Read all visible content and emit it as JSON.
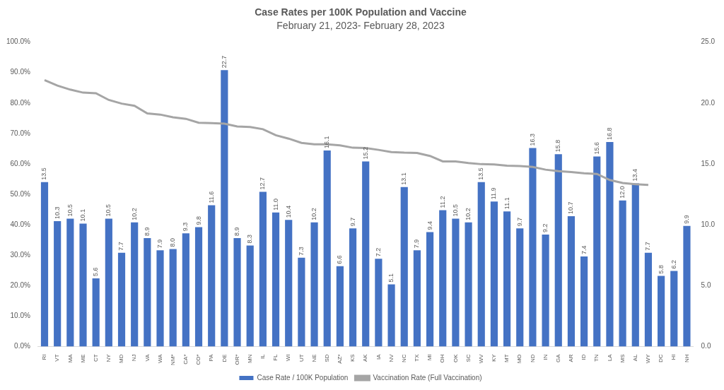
{
  "chart_data": {
    "type": "bar",
    "title": "Case Rates per 100K Population and Vaccine",
    "subtitle": "February 21, 2023- February 28, 2023",
    "categories": [
      "RI",
      "VT",
      "MA",
      "ME",
      "CT",
      "NY",
      "MD",
      "NJ",
      "VA",
      "WA",
      "NM*",
      "CA*",
      "CO*",
      "PA",
      "DE",
      "OR*",
      "MN",
      "IL",
      "FL",
      "WI",
      "UT",
      "NE",
      "SD",
      "AZ*",
      "KS",
      "AK",
      "IA",
      "NV",
      "NC",
      "TX",
      "MI",
      "OH",
      "OK",
      "SC",
      "WV",
      "KY",
      "MT",
      "MO",
      "ND",
      "IN",
      "GA",
      "AR",
      "ID",
      "TN",
      "LA",
      "MS",
      "AL",
      "WY",
      "DC",
      "HI",
      "NH"
    ],
    "series": [
      {
        "name": "Case Rate / 100K Population",
        "type": "bar",
        "color": "#4472c4",
        "axis": "y2",
        "values": [
          13.5,
          10.3,
          10.5,
          10.1,
          5.6,
          10.5,
          7.7,
          10.2,
          8.9,
          7.9,
          8.0,
          9.3,
          9.8,
          11.6,
          22.7,
          8.9,
          8.3,
          12.7,
          11.0,
          10.4,
          7.3,
          10.2,
          16.1,
          6.6,
          9.7,
          15.2,
          7.2,
          5.1,
          13.1,
          7.9,
          9.4,
          11.2,
          10.5,
          10.2,
          13.5,
          11.9,
          11.1,
          9.7,
          16.3,
          9.2,
          15.8,
          10.7,
          7.4,
          15.6,
          16.8,
          12.0,
          13.4,
          7.7,
          5.8,
          6.2,
          9.9
        ],
        "value_labels": [
          "13.5",
          "10.3",
          "10.5",
          "10.1",
          "5.6",
          "10.5",
          "7.7",
          "10.2",
          "8.9",
          "7.9",
          "8.0",
          "9.3",
          "9.8",
          "11.6",
          "22.7",
          "8.9",
          "8.3",
          "12.7",
          "11.0",
          "10.4",
          "7.3",
          "10.2",
          "16.1",
          "6.6",
          "9.7",
          "15.2",
          "7.2",
          "5.1",
          "13.1",
          "7.9",
          "9.4",
          "11.2",
          "10.5",
          "10.2",
          "13.5",
          "11.9",
          "11.1",
          "9.7",
          "16.3",
          "9.2",
          "15.8",
          "10.7",
          "7.4",
          "15.6",
          "16.8",
          "12.0",
          "13.4",
          "7.7",
          "5.8",
          "6.2",
          "9.9"
        ]
      },
      {
        "name": "Vaccination Rate (Full Vaccination)",
        "type": "line",
        "color": "#a5a5a5",
        "marker": "none",
        "line_style": "solid",
        "values": [
          87.5,
          85.7,
          84.4,
          83.4,
          83.2,
          81.0,
          79.8,
          79.1,
          76.6,
          76.2,
          75.3,
          74.8,
          73.5,
          73.4,
          73.2,
          72.3,
          72.1,
          71.4,
          69.4,
          68.3,
          66.9,
          66.4,
          66.4,
          66.1,
          65.3,
          65.2,
          64.6,
          63.9,
          63.7,
          63.6,
          62.6,
          60.8,
          60.8,
          60.3,
          59.9,
          59.8,
          59.4,
          59.3,
          59.0,
          58.1,
          57.6,
          57.3,
          56.9,
          56.7,
          54.7,
          53.7,
          53.3,
          53.1,
          null,
          null,
          null
        ]
      }
    ],
    "ylim": [
      0,
      100
    ],
    "yticks": [
      {
        "value": 0,
        "label": "0.0%"
      },
      {
        "value": 10,
        "label": "10.0%"
      },
      {
        "value": 20,
        "label": "20.0%"
      },
      {
        "value": 30,
        "label": "30.0%"
      },
      {
        "value": 40,
        "label": "40.0%"
      },
      {
        "value": 50,
        "label": "50.0%"
      },
      {
        "value": 60,
        "label": "60.0%"
      },
      {
        "value": 70,
        "label": "70.0%"
      },
      {
        "value": 80,
        "label": "80.0%"
      },
      {
        "value": 90,
        "label": "90.0%"
      },
      {
        "value": 100,
        "label": "100.0%"
      }
    ],
    "y2lim": [
      0,
      25
    ],
    "y2ticks": [
      {
        "value": 0,
        "label": "0.0"
      },
      {
        "value": 5,
        "label": "5.0"
      },
      {
        "value": 10,
        "label": "10.0"
      },
      {
        "value": 15,
        "label": "15.0"
      },
      {
        "value": 20,
        "label": "20.0"
      },
      {
        "value": 25,
        "label": "25.0"
      }
    ],
    "grid": false,
    "legend": "bottom",
    "data_labels": true
  }
}
